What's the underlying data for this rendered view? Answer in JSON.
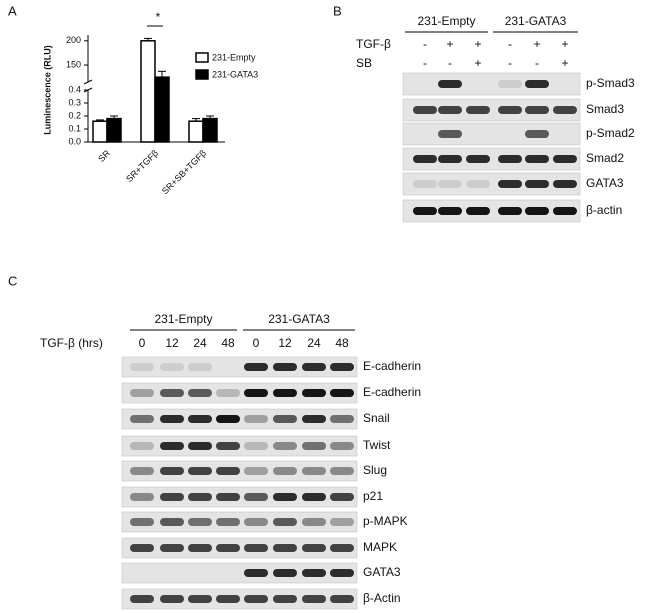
{
  "panels": {
    "a": "A",
    "b": "B",
    "c": "C"
  },
  "chart_data": {
    "type": "bar",
    "ylabel": "Luminescence (RLU)",
    "categories": [
      "SR",
      "SR+TGFβ",
      "SR+SB+TGFβ"
    ],
    "series": [
      {
        "name": "231-Empty",
        "color": "#ffffff",
        "values": [
          0.16,
          200,
          0.16
        ],
        "errors": [
          0.01,
          5,
          0.02
        ]
      },
      {
        "name": "231-GATA3",
        "color": "#000000",
        "values": [
          0.18,
          125,
          0.18
        ],
        "errors": [
          0.02,
          12,
          0.02
        ]
      }
    ],
    "ylim": [
      0,
      212
    ],
    "y_break": [
      0.4,
      115
    ],
    "yticks": [
      {
        "value": 0,
        "label": "0.0"
      },
      0.1,
      0.2,
      0.3,
      0.4,
      150,
      200
    ],
    "annotation": "*"
  },
  "blot_b": {
    "groups": [
      "231-Empty",
      "231-GATA3"
    ],
    "treatments": [
      {
        "label": "TGF-β",
        "signs": [
          "-",
          "+",
          "+",
          "-",
          "+",
          "+"
        ]
      },
      {
        "label": "SB",
        "signs": [
          "-",
          "-",
          "+",
          "-",
          "-",
          "+"
        ]
      }
    ],
    "bands": [
      "p-Smad3",
      "Smad3",
      "p-Smad2",
      "Smad2",
      "GATA3",
      "β-actin"
    ]
  },
  "blot_c": {
    "groups": [
      "231-Empty",
      "231-GATA3"
    ],
    "time_label": "TGF-β (hrs)",
    "times": [
      "0",
      "12",
      "24",
      "48",
      "0",
      "12",
      "24",
      "48"
    ],
    "bands": [
      "E-cadherin",
      "E-cadherin",
      "Snail",
      "Twist",
      "Slug",
      "p21",
      "p-MAPK",
      "MAPK",
      "GATA3",
      "β-Actin"
    ]
  }
}
